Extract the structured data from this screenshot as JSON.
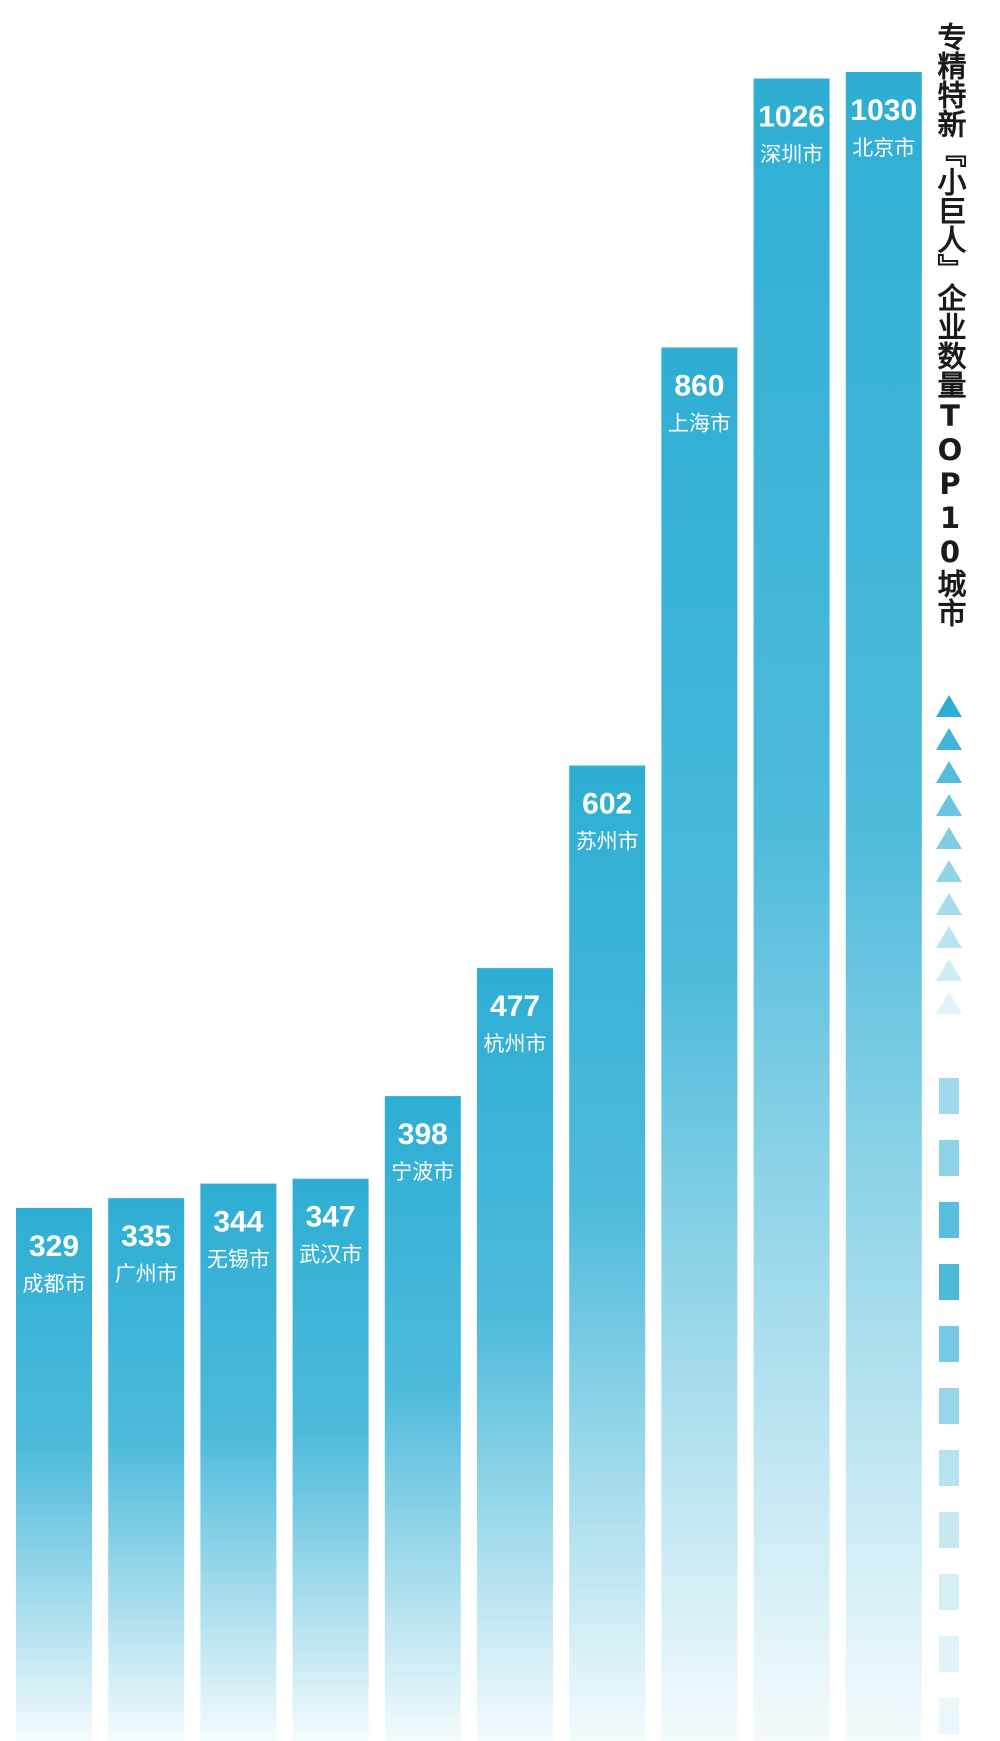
{
  "chart_data": {
    "type": "bar",
    "title": "专精特新『小巨人』企业数量TOP10城市",
    "categories": [
      "成都市",
      "广州市",
      "无锡市",
      "武汉市",
      "宁波市",
      "杭州市",
      "苏州市",
      "上海市",
      "深圳市",
      "北京市"
    ],
    "values": [
      329,
      335,
      344,
      347,
      398,
      477,
      602,
      860,
      1026,
      1030
    ],
    "color": "#2eaed4"
  }
}
